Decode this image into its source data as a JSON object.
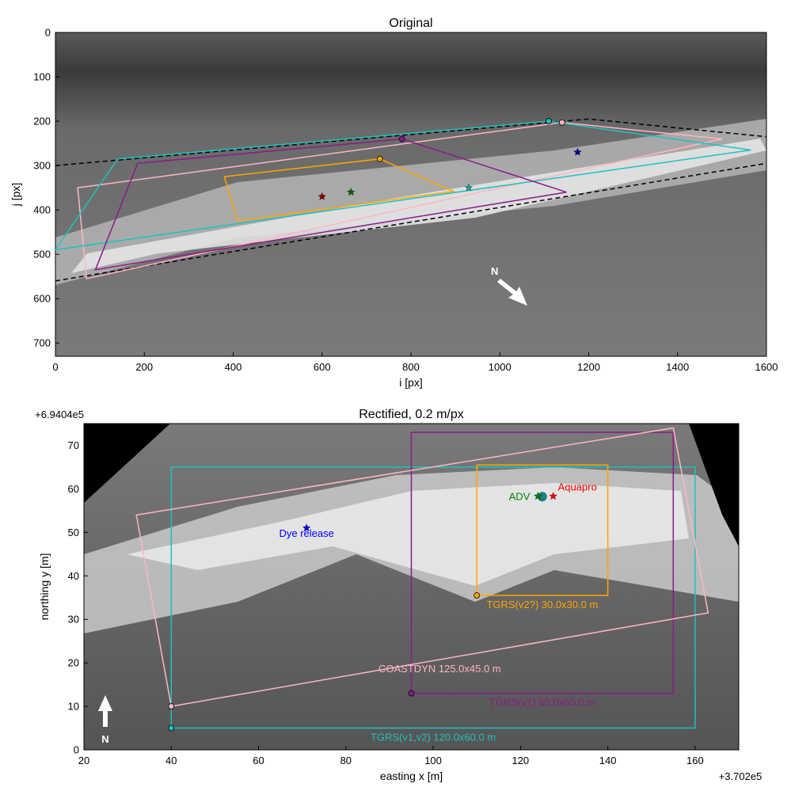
{
  "chart_data": [
    {
      "type": "image-overlay",
      "title": "Original",
      "xlabel": "i [px]",
      "ylabel": "j [px]",
      "xlim": [
        0,
        1600
      ],
      "ylim": [
        730,
        0
      ],
      "xticks": [
        0,
        200,
        400,
        600,
        800,
        1000,
        1200,
        1400,
        1600
      ],
      "yticks": [
        0,
        100,
        200,
        300,
        400,
        500,
        600,
        700
      ],
      "north_label": "N",
      "shapes": [
        {
          "color": "#000000",
          "dashed": true,
          "closed": false,
          "x": [
            0,
            1200,
            1600
          ],
          "y": [
            300,
            195,
            235
          ]
        },
        {
          "color": "#000000",
          "dashed": true,
          "closed": false,
          "x": [
            0,
            1600
          ],
          "y": [
            560,
            295
          ]
        },
        {
          "color": "#ffb6c1",
          "dashed": false,
          "closed": true,
          "x": [
            50,
            1140,
            1500,
            70
          ],
          "y": [
            350,
            203,
            240,
            555
          ]
        },
        {
          "color": "#20c0c0",
          "dashed": false,
          "closed": true,
          "x": [
            0,
            140,
            1110,
            1565
          ],
          "y": [
            490,
            285,
            200,
            265
          ]
        },
        {
          "color": "#8b1a8b",
          "dashed": false,
          "closed": true,
          "x": [
            185,
            780,
            1150,
            90
          ],
          "y": [
            295,
            240,
            360,
            535
          ]
        },
        {
          "color": "#ffa500",
          "dashed": false,
          "closed": true,
          "x": [
            380,
            730,
            895,
            410
          ],
          "y": [
            325,
            285,
            358,
            425
          ]
        }
      ],
      "points": [
        {
          "color": "#20c0c0",
          "marker": "circle",
          "x": 1110,
          "y": 200
        },
        {
          "color": "#ffb6c1",
          "marker": "circle",
          "x": 1140,
          "y": 203
        },
        {
          "color": "#8b1a8b",
          "marker": "circle",
          "x": 780,
          "y": 240
        },
        {
          "color": "#ffa500",
          "marker": "circle",
          "x": 730,
          "y": 285
        },
        {
          "color": "#8b0000",
          "marker": "star",
          "x": 600,
          "y": 370
        },
        {
          "color": "#006400",
          "marker": "star",
          "x": 665,
          "y": 360
        },
        {
          "color": "#00008b",
          "marker": "star",
          "x": 1175,
          "y": 270
        },
        {
          "color": "#20a0a0",
          "marker": "star",
          "x": 930,
          "y": 350
        }
      ]
    },
    {
      "type": "image-overlay",
      "title": "Rectified, 0.2 m/px",
      "xlabel": "easting x [m]",
      "ylabel": "northing y [m]",
      "x_offset_label": "+3.702e5",
      "y_offset_label": "+6.9404e5",
      "xlim": [
        20,
        170
      ],
      "ylim": [
        0,
        75
      ],
      "xticks": [
        20,
        40,
        60,
        80,
        100,
        120,
        140,
        160
      ],
      "yticks": [
        0,
        10,
        20,
        30,
        40,
        50,
        60,
        70
      ],
      "north_label": "N",
      "shapes": [
        {
          "name": "TGRS(v1,v2) 120.0x60.0 m",
          "color": "#20c0c0",
          "dashed": false,
          "closed": true,
          "x": [
            40,
            160,
            160,
            40
          ],
          "y": [
            5,
            5,
            65,
            65
          ]
        },
        {
          "name": "TGRS(v1) 60.0x60.0 m",
          "color": "#8b1a8b",
          "dashed": false,
          "closed": true,
          "x": [
            95,
            155,
            155,
            95
          ],
          "y": [
            13,
            13,
            73,
            73
          ]
        },
        {
          "name": "TGRS(v2?) 30.0x30.0 m",
          "color": "#ffa500",
          "dashed": false,
          "closed": true,
          "x": [
            110,
            140,
            140,
            110
          ],
          "y": [
            35.5,
            35.5,
            65.5,
            65.5
          ]
        },
        {
          "name": "COASTDYN 125.0x45.0 m",
          "color": "#ffb6c1",
          "dashed": false,
          "closed": true,
          "x": [
            40,
            163,
            155,
            32
          ],
          "y": [
            10,
            31.5,
            74,
            54
          ]
        }
      ],
      "points": [
        {
          "color": "#20c0c0",
          "marker": "circle",
          "x": 40,
          "y": 5
        },
        {
          "color": "#8b1a8b",
          "marker": "circle",
          "x": 95,
          "y": 13
        },
        {
          "color": "#ffa500",
          "marker": "circle",
          "x": 110,
          "y": 35.5
        },
        {
          "color": "#ffb6c1",
          "marker": "circle",
          "x": 40,
          "y": 10
        },
        {
          "color": "#208080",
          "marker": "bigcircle",
          "x": 125,
          "y": 58.2
        },
        {
          "label": "ADV",
          "color": "#008000",
          "marker": "star",
          "x": 124,
          "y": 58.3
        },
        {
          "label": "Aquapro",
          "color": "#ff0000",
          "marker": "star",
          "x": 127.5,
          "y": 58.3
        },
        {
          "label": "Dye release",
          "color": "#0000ff",
          "marker": "star",
          "x": 71,
          "y": 51
        }
      ]
    }
  ]
}
